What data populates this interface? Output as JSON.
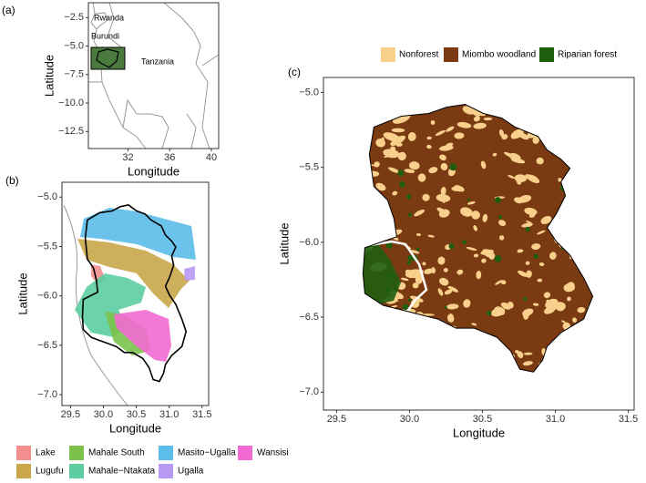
{
  "panels": [
    {
      "tag": "(a)",
      "xlabel": "Longitude",
      "ylabel": "Latitude",
      "xlim": [
        28.2,
        40.7
      ],
      "ylim": [
        -14.0,
        -1.2
      ],
      "xticks": [
        32,
        36,
        40
      ],
      "yticks": [
        {
          "value": -2.5,
          "label": "−2.5"
        },
        {
          "value": -5,
          "label": "−5.0"
        },
        {
          "value": -7.5,
          "label": "−7.5"
        },
        {
          "value": -10,
          "label": "−10.0"
        },
        {
          "value": -12.5,
          "label": "−12.5"
        }
      ],
      "places": [
        "Rwanda",
        "Burundi",
        "Tanzania"
      ]
    },
    {
      "tag": "(b)",
      "xlabel": "Longitude",
      "ylabel": "Latitude",
      "xlim": [
        29.37,
        31.6
      ],
      "ylim": [
        -7.11,
        -4.85
      ],
      "xticks": [
        {
          "value": 29.5,
          "label": "29.5"
        },
        {
          "value": 30,
          "label": "30.0"
        },
        {
          "value": 30.5,
          "label": "30.5"
        },
        {
          "value": 31,
          "label": "31.0"
        },
        {
          "value": 31.5,
          "label": "31.5"
        }
      ],
      "yticks": [
        {
          "value": -5,
          "label": "−5.0"
        },
        {
          "value": -5.5,
          "label": "−5.5"
        },
        {
          "value": -6,
          "label": "−6.0"
        },
        {
          "value": -6.5,
          "label": "−6.5"
        },
        {
          "value": -7,
          "label": "−7.0"
        }
      ],
      "legend": [
        {
          "name": "Lake",
          "color": "#f28e8e"
        },
        {
          "name": "Lugufu",
          "color": "#c9a74a"
        },
        {
          "name": "Mahale South",
          "color": "#7cc24a"
        },
        {
          "name": "Mahale−Ntakata",
          "color": "#5ccda0"
        },
        {
          "name": "Masito−Ugalla",
          "color": "#5bbde9"
        },
        {
          "name": "Ugalla",
          "color": "#b89af5"
        },
        {
          "name": "Wansisi",
          "color": "#f26ad2"
        }
      ]
    },
    {
      "tag": "(c)",
      "xlabel": "Longitude",
      "ylabel": "Latitude",
      "xlim": [
        29.41,
        31.54
      ],
      "ylim": [
        -7.12,
        -4.9
      ],
      "xticks": [
        {
          "value": 29.5,
          "label": "29.5"
        },
        {
          "value": 30,
          "label": "30.0"
        },
        {
          "value": 30.5,
          "label": "30.5"
        },
        {
          "value": 31,
          "label": "31.0"
        },
        {
          "value": 31.5,
          "label": "31.5"
        }
      ],
      "yticks": [
        {
          "value": -5,
          "label": "−5.0"
        },
        {
          "value": -5.5,
          "label": "−5.5"
        },
        {
          "value": -6,
          "label": "−6.0"
        },
        {
          "value": -6.5,
          "label": "−6.5"
        },
        {
          "value": -7,
          "label": "−7.0"
        }
      ],
      "legend": [
        {
          "name": "Nonforest",
          "color": "#f9cf8c"
        },
        {
          "name": "Miombo woodland",
          "color": "#7a3a12"
        },
        {
          "name": "Riparian forest",
          "color": "#1f5e0f"
        }
      ]
    }
  ]
}
